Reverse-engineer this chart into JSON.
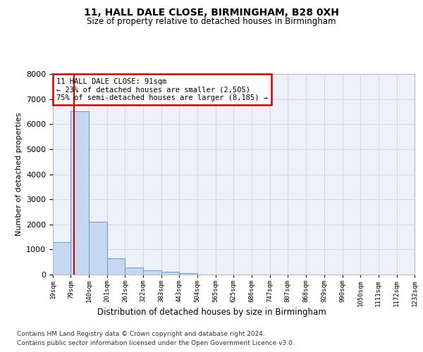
{
  "title": "11, HALL DALE CLOSE, BIRMINGHAM, B28 0XH",
  "subtitle": "Size of property relative to detached houses in Birmingham",
  "xlabel": "Distribution of detached houses by size in Birmingham",
  "ylabel": "Number of detached properties",
  "footer_line1": "Contains HM Land Registry data © Crown copyright and database right 2024.",
  "footer_line2": "Contains public sector information licensed under the Open Government Licence v3.0.",
  "bin_edges": [
    19,
    79,
    140,
    201,
    261,
    322,
    383,
    443,
    504,
    565,
    625,
    686,
    747,
    807,
    868,
    929,
    990,
    1050,
    1111,
    1172,
    1232
  ],
  "bar_heights": [
    1300,
    6500,
    2100,
    650,
    280,
    160,
    100,
    60,
    0,
    0,
    0,
    0,
    0,
    0,
    0,
    0,
    0,
    0,
    0,
    0
  ],
  "bar_color": "#c5d8f0",
  "bar_edge_color": "#6699cc",
  "property_size": 91,
  "vline_color": "#cc0000",
  "ylim": [
    0,
    8000
  ],
  "yticks": [
    0,
    1000,
    2000,
    3000,
    4000,
    5000,
    6000,
    7000,
    8000
  ],
  "annotation_line1": "11 HALL DALE CLOSE: 91sqm",
  "annotation_line2": "← 23% of detached houses are smaller (2,505)",
  "annotation_line3": "75% of semi-detached houses are larger (8,185) →",
  "annotation_box_color": "#cc0000",
  "grid_color": "#d0d8e8",
  "bg_color": "#edf2fa"
}
